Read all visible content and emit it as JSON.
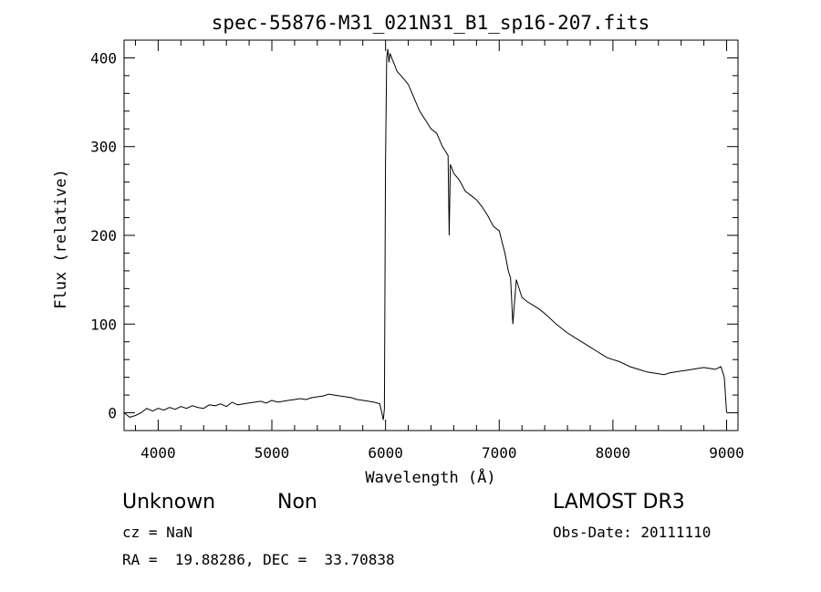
{
  "chart_data": {
    "type": "line",
    "title": "spec-55876-M31_021N31_B1_sp16-207.fits",
    "xlabel": "Wavelength (Å)",
    "ylabel": "Flux (relative)",
    "xlim": [
      3700,
      9100
    ],
    "ylim": [
      -20,
      420
    ],
    "x_ticks": [
      4000,
      5000,
      6000,
      7000,
      8000,
      9000
    ],
    "y_ticks": [
      0,
      100,
      200,
      300,
      400
    ],
    "grid": false,
    "series": [
      {
        "color": "#000000",
        "x": [
          3700,
          3750,
          3800,
          3850,
          3900,
          3950,
          4000,
          4050,
          4100,
          4150,
          4200,
          4250,
          4300,
          4350,
          4400,
          4450,
          4500,
          4550,
          4600,
          4650,
          4700,
          4750,
          4800,
          4850,
          4900,
          4950,
          5000,
          5050,
          5100,
          5150,
          5200,
          5250,
          5300,
          5350,
          5400,
          5450,
          5500,
          5550,
          5600,
          5650,
          5700,
          5750,
          5800,
          5850,
          5900,
          5950,
          5980,
          5990,
          6000,
          6010,
          6020,
          6030,
          6040,
          6060,
          6080,
          6100,
          6150,
          6200,
          6250,
          6300,
          6350,
          6400,
          6450,
          6500,
          6550,
          6560,
          6570,
          6600,
          6650,
          6700,
          6750,
          6800,
          6850,
          6900,
          6950,
          7000,
          7050,
          7080,
          7100,
          7120,
          7150,
          7200,
          7250,
          7300,
          7350,
          7400,
          7450,
          7500,
          7550,
          7600,
          7650,
          7700,
          7750,
          7800,
          7850,
          7900,
          7950,
          8000,
          8050,
          8100,
          8150,
          8200,
          8250,
          8300,
          8350,
          8400,
          8450,
          8500,
          8550,
          8600,
          8650,
          8700,
          8750,
          8800,
          8850,
          8900,
          8950,
          8980,
          9000
        ],
        "y": [
          0,
          -5,
          -3,
          0,
          5,
          2,
          5,
          3,
          6,
          4,
          7,
          5,
          8,
          6,
          5,
          9,
          8,
          10,
          7,
          12,
          9,
          10,
          11,
          12,
          13,
          11,
          14,
          12,
          13,
          14,
          15,
          16,
          15,
          17,
          18,
          19,
          21,
          20,
          19,
          18,
          17,
          15,
          14,
          13,
          12,
          10,
          -8,
          5,
          280,
          400,
          410,
          395,
          405,
          398,
          392,
          385,
          378,
          370,
          355,
          340,
          330,
          320,
          315,
          300,
          290,
          200,
          280,
          270,
          262,
          250,
          245,
          240,
          232,
          222,
          210,
          205,
          180,
          160,
          152,
          100,
          150,
          130,
          125,
          121,
          117,
          112,
          106,
          100,
          95,
          90,
          86,
          82,
          78,
          74,
          70,
          66,
          62,
          60,
          58,
          55,
          52,
          50,
          48,
          46,
          45,
          44,
          43,
          45,
          46,
          47,
          48,
          49,
          50,
          51,
          50,
          49,
          52,
          40,
          0
        ]
      }
    ]
  },
  "info": {
    "line1_left": "Unknown",
    "line1_mid": "Non",
    "line1_right": "LAMOST DR3",
    "line2_left": "cz = NaN",
    "line2_right": "Obs-Date: 20111110",
    "line3": "RA =  19.88286, DEC =  33.70838"
  }
}
